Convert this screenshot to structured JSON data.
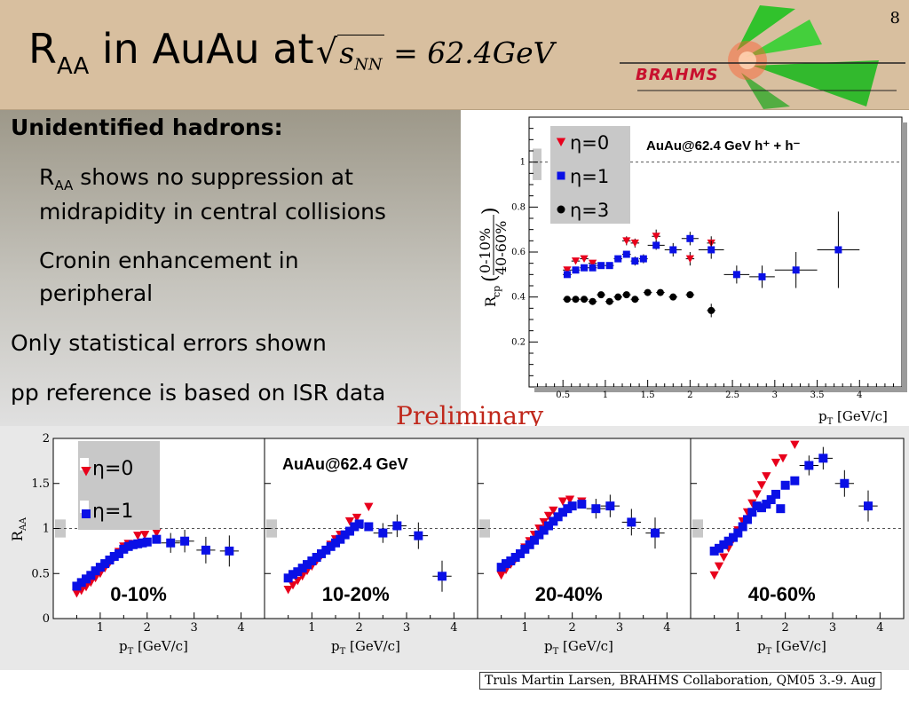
{
  "slide": {
    "number": "8",
    "title_main": "R",
    "title_sub": "AA",
    "title_rest": " in AuAu at ",
    "title_eq_radicand": "s",
    "title_eq_radicand_sub": "NN",
    "title_eq_rhs": " = 62.4GeV",
    "logo_text": "BRAHMS",
    "preliminary": "Preliminary",
    "footer": "Truls Martin Larsen, BRAHMS Collaboration, QM05 3.-9. Aug"
  },
  "text": {
    "heading": "Unidentified hadrons:",
    "b1_r": "R",
    "b1_sub": "AA",
    "b1_rest": " shows no suppression at",
    "b1_line2": "midrapidity in central collisions",
    "b2_line1": "Cronin enhancement in",
    "b2_line2": "peripheral",
    "b3": "Only statistical errors shown",
    "b4": "pp reference is based on ISR data"
  },
  "colors": {
    "red": "#e8001c",
    "blue": "#0a10e6",
    "black": "#000000",
    "header": "#d8bf9f"
  },
  "chart_data": [
    {
      "type": "scatter",
      "annotation": "AuAu@62.4 GeV h⁺ + h⁻",
      "xlabel": "p_T [GeV/c]",
      "ylabel": "R_cp(0-10% / 40-60%)",
      "xlim": [
        0.1,
        4.5
      ],
      "ylim": [
        0.0,
        1.2
      ],
      "xticks": [
        0.5,
        1,
        1.5,
        2,
        2.5,
        3,
        3.5,
        4
      ],
      "xtick_labels": [
        "0.5",
        "1",
        "1.5",
        "2",
        "2.5",
        "3",
        "3.5",
        "4"
      ],
      "yticks": [
        0.2,
        0.4,
        0.6,
        0.8,
        1
      ],
      "ytick_labels": [
        "0.2",
        "0.4",
        "0.6",
        "0.8",
        "1"
      ],
      "reference_line": 1,
      "legend": [
        "η=0",
        "η=1",
        "η=3"
      ],
      "legend_position": "top-left",
      "series": [
        {
          "name": "η=0",
          "marker": "triangle-down",
          "color": "red",
          "x": [
            0.55,
            0.65,
            0.75,
            0.85,
            1.25,
            1.35,
            1.6,
            2.0,
            2.25
          ],
          "y": [
            0.52,
            0.56,
            0.57,
            0.55,
            0.65,
            0.64,
            0.67,
            0.57,
            0.64
          ],
          "yerr": [
            0.01,
            0.01,
            0.01,
            0.01,
            0.02,
            0.02,
            0.03,
            0.03,
            0.03
          ]
        },
        {
          "name": "η=1",
          "marker": "square",
          "color": "blue",
          "x": [
            0.55,
            0.65,
            0.75,
            0.85,
            0.95,
            1.05,
            1.15,
            1.25,
            1.35,
            1.45,
            1.6,
            1.8,
            2.0,
            2.25,
            2.55,
            2.85,
            3.25,
            3.75
          ],
          "y": [
            0.5,
            0.52,
            0.53,
            0.53,
            0.54,
            0.54,
            0.57,
            0.59,
            0.56,
            0.57,
            0.63,
            0.61,
            0.66,
            0.61,
            0.5,
            0.49,
            0.52,
            0.61
          ],
          "yerr": [
            0.01,
            0.01,
            0.01,
            0.01,
            0.01,
            0.01,
            0.01,
            0.01,
            0.02,
            0.02,
            0.02,
            0.03,
            0.03,
            0.04,
            0.04,
            0.05,
            0.08,
            0.17
          ],
          "xerr": [
            0.05,
            0.05,
            0.05,
            0.05,
            0.05,
            0.05,
            0.05,
            0.05,
            0.05,
            0.05,
            0.1,
            0.1,
            0.1,
            0.15,
            0.15,
            0.15,
            0.25,
            0.25
          ]
        },
        {
          "name": "η=3",
          "marker": "circle",
          "color": "black",
          "x": [
            0.55,
            0.65,
            0.75,
            0.85,
            0.95,
            1.05,
            1.15,
            1.25,
            1.35,
            1.5,
            1.65,
            1.8,
            2.0,
            2.25
          ],
          "y": [
            0.39,
            0.39,
            0.39,
            0.38,
            0.41,
            0.38,
            0.4,
            0.41,
            0.39,
            0.42,
            0.42,
            0.4,
            0.41,
            0.34
          ],
          "yerr": [
            0.005,
            0.005,
            0.005,
            0.005,
            0.01,
            0.01,
            0.01,
            0.01,
            0.01,
            0.01,
            0.01,
            0.015,
            0.015,
            0.03
          ]
        }
      ]
    },
    {
      "type": "scatter",
      "annotation": "AuAu@62.4 GeV",
      "ylabel": "R_AA",
      "xlabel": "p_T [GeV/c]",
      "xlim": [
        0,
        4.5
      ],
      "ylim": [
        0,
        2
      ],
      "xticks": [
        1,
        2,
        3,
        4
      ],
      "xtick_labels": [
        "1",
        "2",
        "3",
        "4"
      ],
      "yticks": [
        0,
        0.5,
        1,
        1.5,
        2
      ],
      "ytick_labels": [
        "0",
        "0.5",
        "1",
        "1.5",
        "2"
      ],
      "reference_line": 1,
      "legend": [
        "η=0",
        "η=1"
      ],
      "legend_position": "top-left",
      "panels": [
        {
          "label": "0-10%",
          "series": [
            {
              "name": "η=0",
              "marker": "triangle-down",
              "color": "red",
              "x": [
                0.5,
                0.6,
                0.7,
                0.8,
                0.9,
                1.0,
                1.1,
                1.2,
                1.3,
                1.4,
                1.5,
                1.6,
                1.8,
                1.95,
                2.2
              ],
              "y": [
                0.28,
                0.31,
                0.35,
                0.4,
                0.45,
                0.5,
                0.56,
                0.62,
                0.68,
                0.74,
                0.8,
                0.83,
                0.92,
                0.93,
                0.95
              ]
            },
            {
              "name": "η=1",
              "marker": "square",
              "color": "blue",
              "x": [
                0.5,
                0.6,
                0.7,
                0.8,
                0.9,
                1.0,
                1.1,
                1.2,
                1.3,
                1.4,
                1.5,
                1.6,
                1.7,
                1.8,
                1.9,
                2.0,
                2.2,
                2.5,
                2.8,
                3.25,
                3.75
              ],
              "y": [
                0.36,
                0.4,
                0.44,
                0.48,
                0.53,
                0.57,
                0.61,
                0.65,
                0.69,
                0.72,
                0.77,
                0.8,
                0.82,
                0.83,
                0.84,
                0.85,
                0.88,
                0.84,
                0.86,
                0.76,
                0.75
              ]
            }
          ]
        },
        {
          "label": "10-20%",
          "series": [
            {
              "name": "η=0",
              "marker": "triangle-down",
              "color": "red",
              "x": [
                0.5,
                0.6,
                0.7,
                0.8,
                0.9,
                1.0,
                1.1,
                1.2,
                1.3,
                1.4,
                1.5,
                1.6,
                1.8,
                1.95,
                2.2
              ],
              "y": [
                0.32,
                0.37,
                0.42,
                0.47,
                0.53,
                0.58,
                0.64,
                0.7,
                0.76,
                0.82,
                0.88,
                0.93,
                1.08,
                1.12,
                1.24
              ]
            },
            {
              "name": "η=1",
              "marker": "square",
              "color": "blue",
              "x": [
                0.5,
                0.6,
                0.7,
                0.8,
                0.9,
                1.0,
                1.1,
                1.2,
                1.3,
                1.4,
                1.5,
                1.6,
                1.7,
                1.8,
                1.9,
                2.0,
                2.2,
                2.5,
                2.8,
                3.25,
                3.75
              ],
              "y": [
                0.45,
                0.49,
                0.52,
                0.56,
                0.6,
                0.64,
                0.68,
                0.72,
                0.76,
                0.8,
                0.84,
                0.88,
                0.93,
                0.97,
                1.02,
                1.05,
                1.02,
                0.95,
                1.03,
                0.92,
                0.47
              ]
            }
          ]
        },
        {
          "label": "20-40%",
          "series": [
            {
              "name": "η=0",
              "marker": "triangle-down",
              "color": "red",
              "x": [
                0.5,
                0.6,
                0.7,
                0.8,
                0.9,
                1.0,
                1.1,
                1.2,
                1.3,
                1.4,
                1.5,
                1.6,
                1.8,
                1.95,
                2.2
              ],
              "y": [
                0.48,
                0.54,
                0.6,
                0.66,
                0.72,
                0.79,
                0.86,
                0.93,
                1.0,
                1.07,
                1.14,
                1.2,
                1.3,
                1.32,
                1.3
              ]
            },
            {
              "name": "η=1",
              "marker": "square",
              "color": "blue",
              "x": [
                0.5,
                0.6,
                0.7,
                0.8,
                0.9,
                1.0,
                1.1,
                1.2,
                1.3,
                1.4,
                1.5,
                1.6,
                1.7,
                1.8,
                1.9,
                2.0,
                2.2,
                2.5,
                2.8,
                3.25,
                3.75
              ],
              "y": [
                0.57,
                0.61,
                0.64,
                0.68,
                0.72,
                0.77,
                0.82,
                0.87,
                0.93,
                0.98,
                1.03,
                1.08,
                1.13,
                1.18,
                1.22,
                1.25,
                1.27,
                1.22,
                1.25,
                1.07,
                0.95
              ]
            }
          ]
        },
        {
          "label": "40-60%",
          "series": [
            {
              "name": "η=0",
              "marker": "triangle-down",
              "color": "red",
              "x": [
                0.5,
                0.6,
                0.7,
                0.8,
                0.9,
                1.0,
                1.1,
                1.2,
                1.3,
                1.4,
                1.5,
                1.6,
                1.8,
                1.95,
                2.2
              ],
              "y": [
                0.48,
                0.58,
                0.68,
                0.78,
                0.88,
                0.98,
                1.08,
                1.18,
                1.28,
                1.38,
                1.48,
                1.58,
                1.73,
                1.78,
                1.93
              ]
            },
            {
              "name": "η=1",
              "marker": "square",
              "color": "blue",
              "x": [
                0.5,
                0.6,
                0.7,
                0.8,
                0.9,
                1.0,
                1.1,
                1.2,
                1.3,
                1.4,
                1.5,
                1.6,
                1.7,
                1.8,
                1.9,
                2.0,
                2.2,
                2.5,
                2.8,
                3.25,
                3.75
              ],
              "y": [
                0.75,
                0.78,
                0.82,
                0.86,
                0.9,
                0.95,
                1.02,
                1.1,
                1.18,
                1.25,
                1.23,
                1.27,
                1.32,
                1.38,
                1.22,
                1.48,
                1.53,
                1.7,
                1.78,
                1.5,
                1.25
              ]
            }
          ]
        }
      ]
    }
  ]
}
